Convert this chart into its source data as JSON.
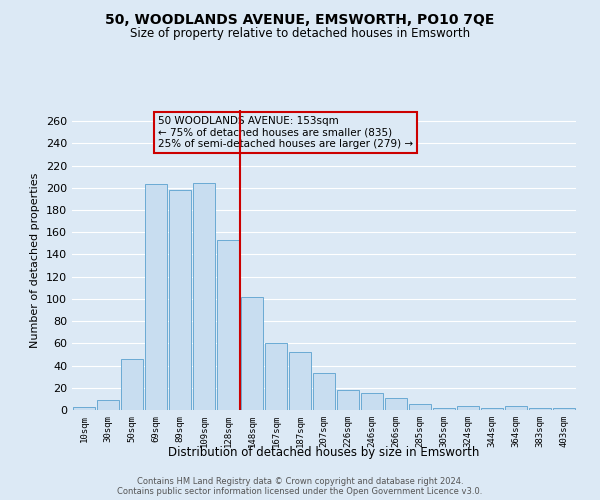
{
  "title": "50, WOODLANDS AVENUE, EMSWORTH, PO10 7QE",
  "subtitle": "Size of property relative to detached houses in Emsworth",
  "xlabel": "Distribution of detached houses by size in Emsworth",
  "ylabel": "Number of detached properties",
  "categories": [
    "10sqm",
    "30sqm",
    "50sqm",
    "69sqm",
    "89sqm",
    "109sqm",
    "128sqm",
    "148sqm",
    "167sqm",
    "187sqm",
    "207sqm",
    "226sqm",
    "246sqm",
    "266sqm",
    "285sqm",
    "305sqm",
    "324sqm",
    "344sqm",
    "364sqm",
    "383sqm",
    "403sqm"
  ],
  "values": [
    3,
    9,
    46,
    203,
    198,
    204,
    153,
    102,
    60,
    52,
    33,
    18,
    15,
    11,
    5,
    2,
    4,
    2,
    4,
    2,
    2
  ],
  "bar_color": "#c8ddf0",
  "bar_edge_color": "#6aaad4",
  "background_color": "#dce9f5",
  "grid_color": "#ffffff",
  "vline_x_index": 7,
  "vline_color": "#cc0000",
  "annotation_box_edge_color": "#cc0000",
  "annotation_lines": [
    "50 WOODLANDS AVENUE: 153sqm",
    "← 75% of detached houses are smaller (835)",
    "25% of semi-detached houses are larger (279) →"
  ],
  "footnote1": "Contains HM Land Registry data © Crown copyright and database right 2024.",
  "footnote2": "Contains public sector information licensed under the Open Government Licence v3.0.",
  "ylim": [
    0,
    270
  ],
  "yticks": [
    0,
    20,
    40,
    60,
    80,
    100,
    120,
    140,
    160,
    180,
    200,
    220,
    240,
    260
  ]
}
